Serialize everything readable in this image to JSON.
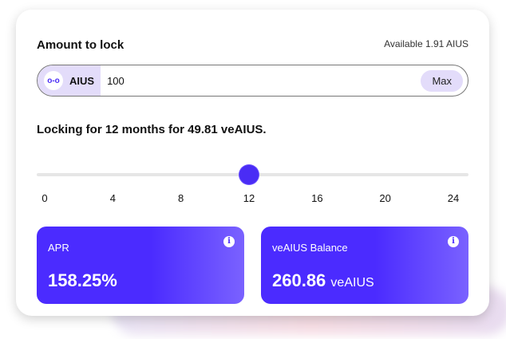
{
  "title": "Amount to lock",
  "available": "Available 1.91 AIUS",
  "input": {
    "token": "AIUS",
    "token_icon": "link-icon",
    "value": "100",
    "max_label": "Max"
  },
  "locking_text": "Locking for 12 months for 49.81 veAIUS.",
  "slider": {
    "value": 12,
    "min": 0,
    "max": 24,
    "ticks": [
      "0",
      "4",
      "8",
      "12",
      "16",
      "20",
      "24"
    ]
  },
  "stats": [
    {
      "label": "APR",
      "value": "158.25%",
      "unit": ""
    },
    {
      "label": "veAIUS Balance",
      "value": "260.86",
      "unit": "veAIUS"
    }
  ],
  "colors": {
    "accent": "#4b2bff",
    "token_bg": "#e3dcfa"
  }
}
